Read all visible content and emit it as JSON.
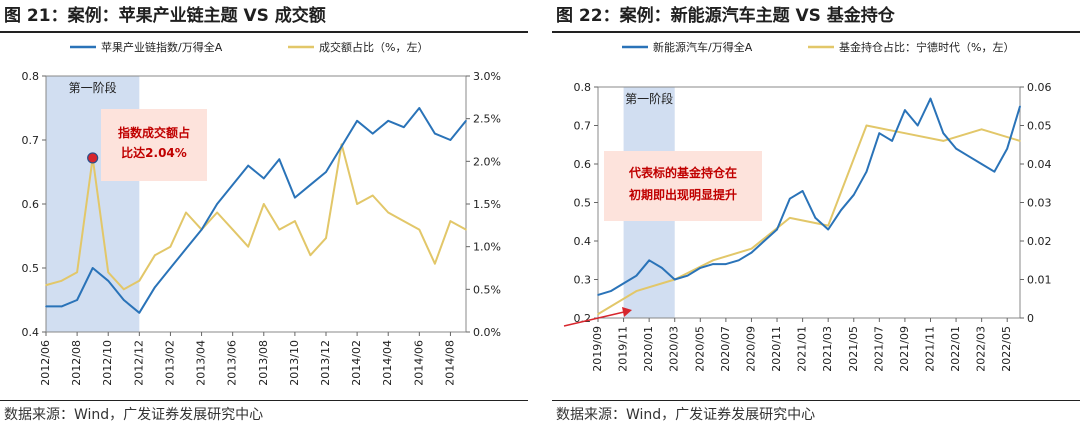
{
  "colors": {
    "blue": "#2a73b8",
    "gold": "#e2c769",
    "shade": "#c9d8ef",
    "annotation_bg": "#fde3dc",
    "annotation_text": "#c00000",
    "marker": "#d7262d"
  },
  "left": {
    "title": "图 21：案例：苹果产业链主题 VS 成交额",
    "source": "数据来源：Wind，广发证券发展研究中心"
  },
  "right": {
    "title": "图 22：案例：新能源汽车主题 VS 基金持仓",
    "source": "数据来源：Wind，广发证券发展研究中心"
  },
  "chart_data": [
    {
      "type": "line",
      "title": "案例：苹果产业链主题 VS 成交额",
      "legend_position": "top",
      "x_ticks": [
        "2012/06",
        "2012/08",
        "2012/10",
        "2012/12",
        "2013/02",
        "2013/04",
        "2013/06",
        "2013/08",
        "2013/10",
        "2013/12",
        "2014/02",
        "2014/04",
        "2014/06",
        "2014/08"
      ],
      "y_left": {
        "lim": [
          0.4,
          0.8
        ],
        "ticks": [
          "0.4",
          "0.5",
          "0.6",
          "0.7",
          "0.8"
        ]
      },
      "y_right": {
        "lim": [
          0,
          3.0
        ],
        "unit": "%",
        "ticks": [
          "0.0%",
          "0.5%",
          "1.0%",
          "1.5%",
          "2.0%",
          "2.5%",
          "3.0%"
        ]
      },
      "series": [
        {
          "name": "苹果产业链指数/万得全A",
          "axis": "left",
          "x": [
            "2012/06",
            "2012/07",
            "2012/08",
            "2012/09",
            "2012/10",
            "2012/11",
            "2012/12",
            "2013/01",
            "2013/02",
            "2013/03",
            "2013/04",
            "2013/05",
            "2013/06",
            "2013/07",
            "2013/08",
            "2013/09",
            "2013/10",
            "2013/11",
            "2013/12",
            "2014/01",
            "2014/02",
            "2014/03",
            "2014/04",
            "2014/05",
            "2014/06",
            "2014/07",
            "2014/08",
            "2014/09"
          ],
          "y": [
            0.44,
            0.44,
            0.45,
            0.5,
            0.48,
            0.45,
            0.43,
            0.47,
            0.5,
            0.53,
            0.56,
            0.6,
            0.63,
            0.66,
            0.64,
            0.67,
            0.61,
            0.63,
            0.65,
            0.69,
            0.73,
            0.71,
            0.73,
            0.72,
            0.75,
            0.71,
            0.7,
            0.73
          ]
        },
        {
          "name": "成交额占比（%，左）",
          "axis": "right",
          "x": [
            "2012/06",
            "2012/07",
            "2012/08",
            "2012/09",
            "2012/10",
            "2012/11",
            "2012/12",
            "2013/01",
            "2013/02",
            "2013/03",
            "2013/04",
            "2013/05",
            "2013/06",
            "2013/07",
            "2013/08",
            "2013/09",
            "2013/10",
            "2013/11",
            "2013/12",
            "2014/01",
            "2014/02",
            "2014/03",
            "2014/04",
            "2014/05",
            "2014/06",
            "2014/07",
            "2014/08",
            "2014/09"
          ],
          "y": [
            0.55,
            0.6,
            0.7,
            2.04,
            0.7,
            0.5,
            0.6,
            0.9,
            1.0,
            1.4,
            1.2,
            1.4,
            1.2,
            1.0,
            1.5,
            1.2,
            1.3,
            0.9,
            1.1,
            2.2,
            1.5,
            1.6,
            1.4,
            1.3,
            1.2,
            0.8,
            1.3,
            1.2
          ]
        }
      ],
      "highlight_range": {
        "x": [
          "2012/06",
          "2012/12"
        ],
        "label": "第一阶段"
      },
      "annotation": {
        "lines": [
          "指数成交额占",
          "比达2.04%"
        ],
        "point_x": "2012/09",
        "point_y_right": 2.04
      }
    },
    {
      "type": "line",
      "title": "案例：新能源汽车主题 VS 基金持仓",
      "legend_position": "top",
      "x_ticks": [
        "2019/09",
        "2019/11",
        "2020/01",
        "2020/03",
        "2020/05",
        "2020/07",
        "2020/09",
        "2020/11",
        "2021/01",
        "2021/03",
        "2021/05",
        "2021/07",
        "2021/09",
        "2021/11",
        "2022/01",
        "2022/03",
        "2022/05"
      ],
      "y_left": {
        "lim": [
          0.2,
          0.8
        ],
        "ticks": [
          "0.2",
          "0.3",
          "0.4",
          "0.5",
          "0.6",
          "0.7",
          "0.8"
        ]
      },
      "y_right": {
        "lim": [
          0,
          0.06
        ],
        "ticks": [
          "0",
          "0.01",
          "0.02",
          "0.03",
          "0.04",
          "0.05",
          "0.06"
        ]
      },
      "series": [
        {
          "name": "新能源汽车/万得全A",
          "axis": "left",
          "x": [
            "2019/09",
            "2019/10",
            "2019/11",
            "2019/12",
            "2020/01",
            "2020/02",
            "2020/03",
            "2020/04",
            "2020/05",
            "2020/06",
            "2020/07",
            "2020/08",
            "2020/09",
            "2020/10",
            "2020/11",
            "2020/12",
            "2021/01",
            "2021/02",
            "2021/03",
            "2021/04",
            "2021/05",
            "2021/06",
            "2021/07",
            "2021/08",
            "2021/09",
            "2021/10",
            "2021/11",
            "2021/12",
            "2022/01",
            "2022/02",
            "2022/03",
            "2022/04",
            "2022/05",
            "2022/06"
          ],
          "y": [
            0.26,
            0.27,
            0.29,
            0.31,
            0.35,
            0.33,
            0.3,
            0.31,
            0.33,
            0.34,
            0.34,
            0.35,
            0.37,
            0.4,
            0.43,
            0.51,
            0.53,
            0.46,
            0.43,
            0.48,
            0.52,
            0.58,
            0.68,
            0.66,
            0.74,
            0.7,
            0.77,
            0.68,
            0.64,
            0.62,
            0.6,
            0.58,
            0.64,
            0.75
          ]
        },
        {
          "name": "基金持仓占比：宁德时代（%，左）",
          "axis": "right",
          "x": [
            "2019/09",
            "2019/12",
            "2020/03",
            "2020/06",
            "2020/09",
            "2020/12",
            "2021/03",
            "2021/06",
            "2021/09",
            "2021/12",
            "2022/03",
            "2022/06"
          ],
          "y": [
            0.001,
            0.007,
            0.01,
            0.015,
            0.018,
            0.026,
            0.024,
            0.05,
            0.048,
            0.046,
            0.049,
            0.046
          ]
        }
      ],
      "highlight_range": {
        "x": [
          "2019/11",
          "2020/03"
        ],
        "label": "第一阶段"
      },
      "annotation": {
        "lines": [
          "代表标的基金持仓在",
          "初期即出现明显提升"
        ]
      }
    }
  ]
}
